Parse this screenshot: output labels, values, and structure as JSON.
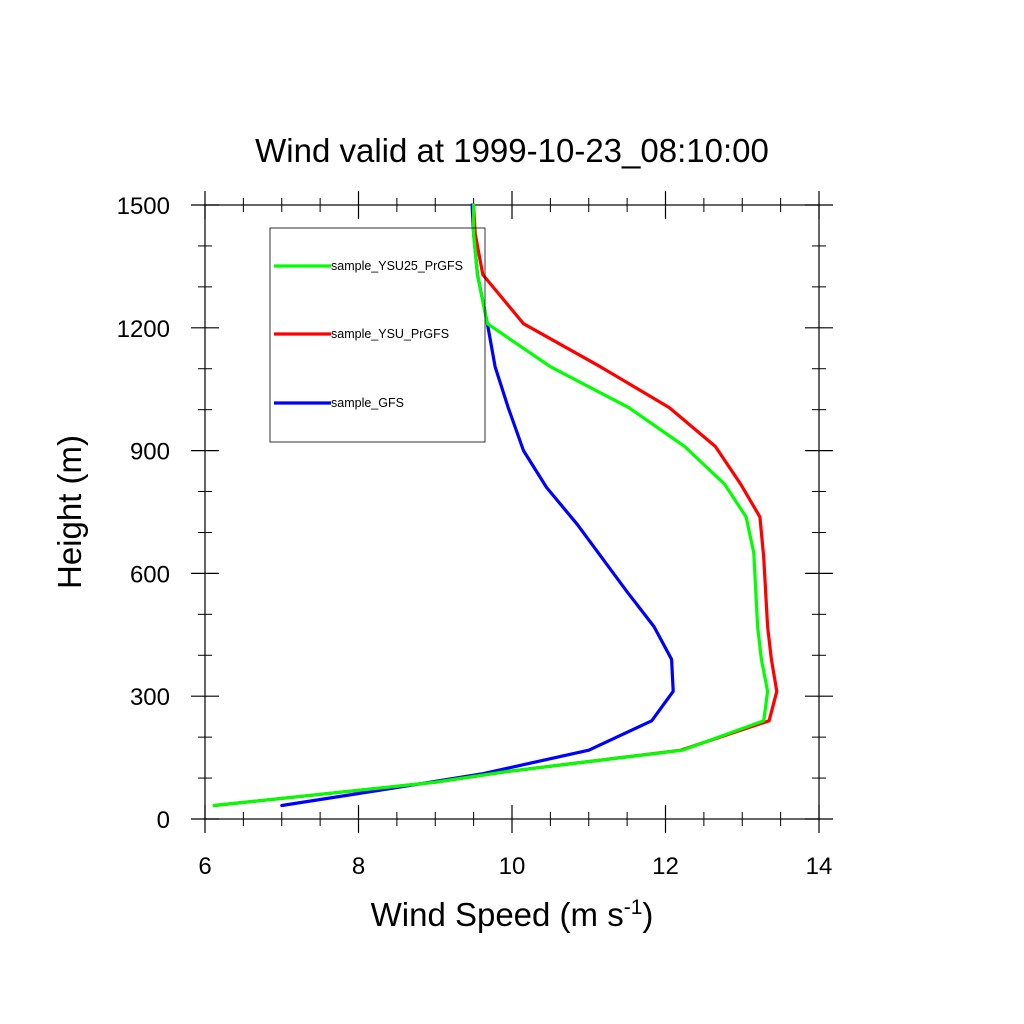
{
  "chart_data": {
    "type": "line",
    "title": "Wind valid at 1999-10-23_08:10:00",
    "xlabel": "Wind Speed (m s",
    "xlabel_sup": "-1",
    "xlabel_close": ")",
    "ylabel": "Height (m)",
    "xlim": [
      6,
      14
    ],
    "ylim": [
      0,
      1500
    ],
    "xticks": [
      6,
      8,
      10,
      12,
      14
    ],
    "yticks": [
      0,
      300,
      600,
      900,
      1200,
      1500
    ],
    "xtick_labels": [
      "6",
      "8",
      "10",
      "12",
      "14"
    ],
    "ytick_labels": [
      "0",
      "300",
      "600",
      "900",
      "1200",
      "1500"
    ],
    "legend_position": "top-left",
    "series": [
      {
        "name": "sample_YSU25_PrGFS",
        "color": "#00ff00",
        "x": [
          6.12,
          9.0,
          9.9,
          12.22,
          13.28,
          13.33,
          13.25,
          13.2,
          13.15,
          13.05,
          12.77,
          12.25,
          11.52,
          10.5,
          9.68,
          9.55,
          9.5,
          9.5
        ],
        "y": [
          33,
          90,
          115,
          168,
          240,
          312,
          390,
          470,
          650,
          738,
          818,
          910,
          1005,
          1105,
          1210,
          1330,
          1430,
          1500
        ]
      },
      {
        "name": "sample_YSU_PrGFS",
        "color": "#ff0000",
        "x": [
          6.12,
          9.0,
          9.9,
          12.2,
          13.35,
          13.45,
          13.38,
          13.33,
          13.28,
          13.23,
          12.98,
          12.65,
          12.05,
          11.15,
          10.15,
          9.62,
          9.52,
          9.5
        ],
        "y": [
          33,
          90,
          115,
          168,
          240,
          312,
          390,
          470,
          640,
          738,
          818,
          910,
          1005,
          1105,
          1210,
          1330,
          1430,
          1500
        ]
      },
      {
        "name": "sample_GFS",
        "color": "#0000ff",
        "x": [
          7.0,
          8.6,
          9.6,
          11.0,
          11.82,
          12.1,
          12.08,
          11.85,
          11.5,
          10.85,
          10.45,
          10.15,
          9.95,
          9.78,
          9.68,
          9.55,
          9.5,
          9.48
        ],
        "y": [
          33,
          80,
          110,
          168,
          240,
          312,
          390,
          470,
          555,
          720,
          810,
          900,
          1005,
          1105,
          1210,
          1330,
          1430,
          1500
        ]
      }
    ]
  }
}
